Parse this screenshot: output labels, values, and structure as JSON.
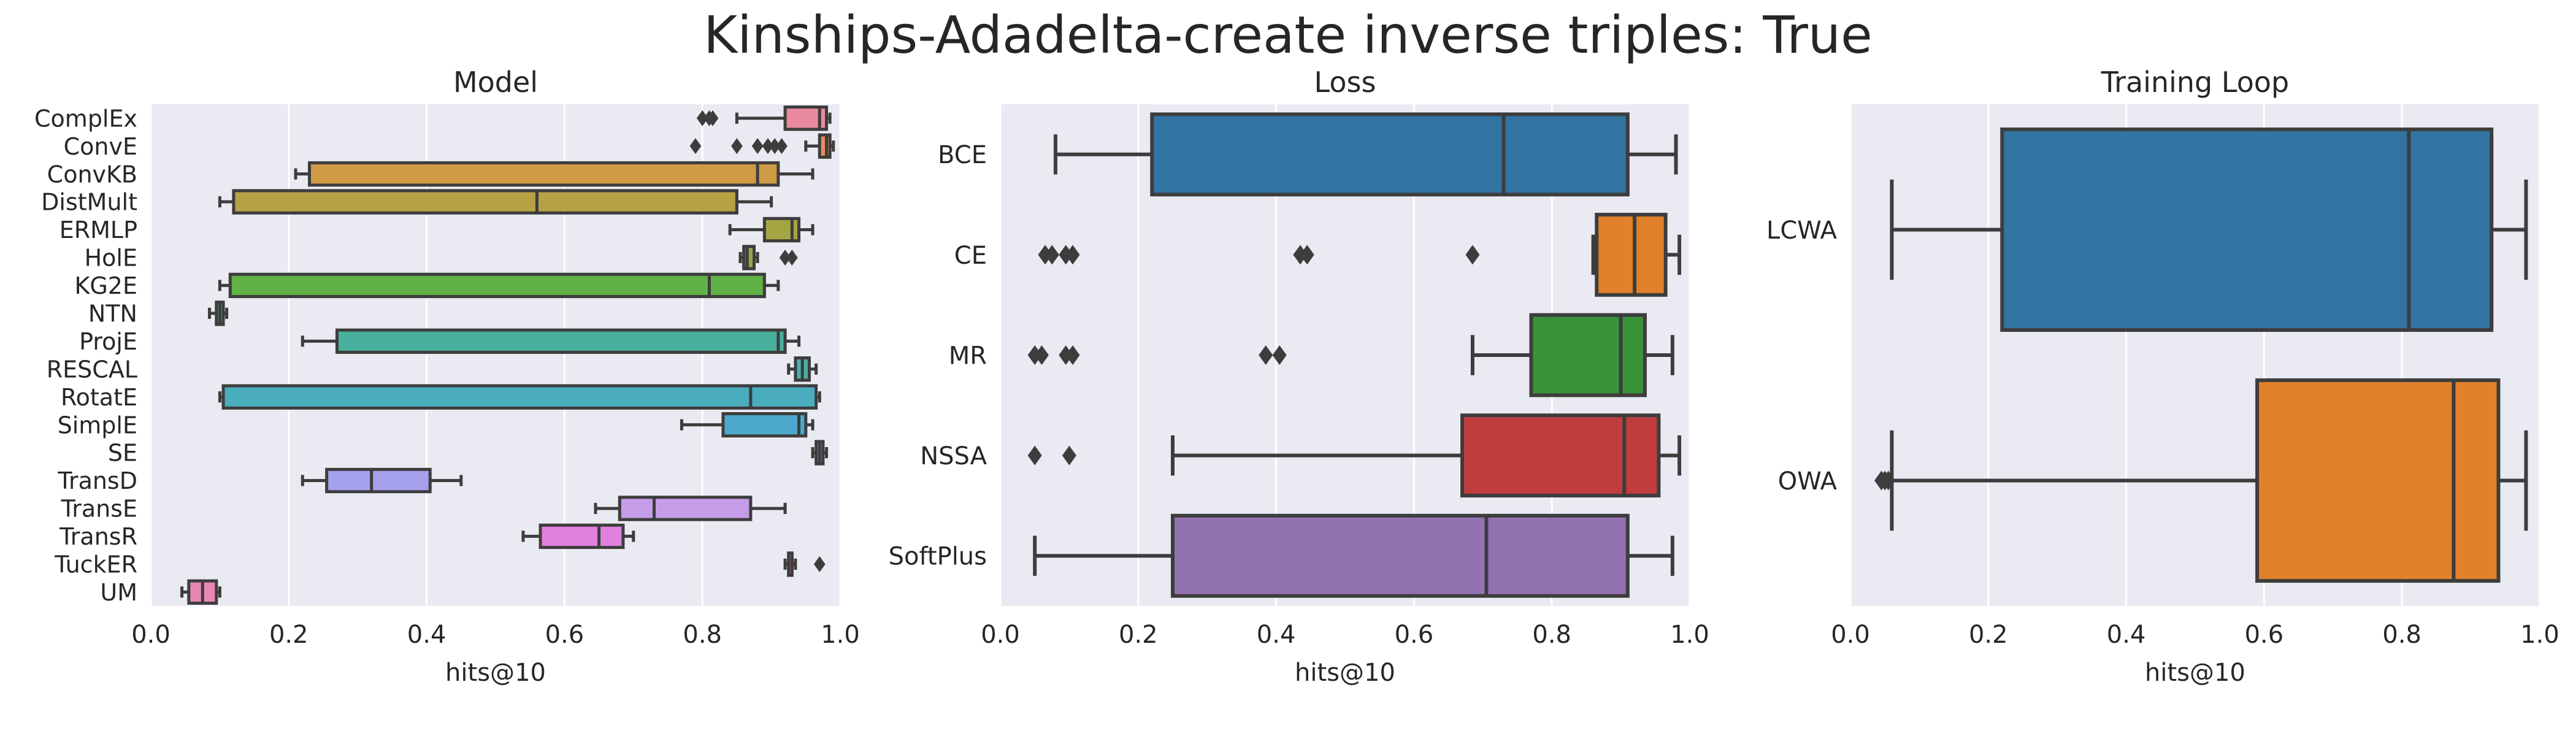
{
  "title": "Kinships-Adadelta-create inverse triples: True",
  "colors": {
    "background": "#eaeaf2",
    "grid": "#ffffff",
    "box_edge": "#3d3d3d"
  },
  "chart_data": [
    {
      "type": "box",
      "orientation": "horizontal",
      "title": "Model",
      "xlabel": "hits@10",
      "ylabel": "",
      "xlim": [
        0.0,
        1.0
      ],
      "xticks": [
        "0.0",
        "0.2",
        "0.4",
        "0.6",
        "0.8",
        "1.0"
      ],
      "grid": true,
      "categories": [
        "ComplEx",
        "ConvE",
        "ConvKB",
        "DistMult",
        "ERMLP",
        "HolE",
        "KG2E",
        "NTN",
        "ProjE",
        "RESCAL",
        "RotatE",
        "SimplE",
        "SE",
        "TransD",
        "TransE",
        "TransR",
        "TuckER",
        "UM"
      ],
      "colors": [
        "#e98aa0",
        "#e58c62",
        "#d09b45",
        "#b6a144",
        "#a6a544",
        "#97a944",
        "#60b146",
        "#4bb284",
        "#48b09c",
        "#49b0ac",
        "#4aadbd",
        "#4ca9cc",
        "#85a1dc",
        "#a6a1ec",
        "#c59ce8",
        "#e081df",
        "#ea84cd",
        "#e986b4"
      ],
      "boxes": [
        {
          "whislo": 0.85,
          "q1": 0.92,
          "med": 0.97,
          "q3": 0.98,
          "whishi": 0.985,
          "fliers": [
            0.8,
            0.81,
            0.815
          ]
        },
        {
          "whislo": 0.95,
          "q1": 0.97,
          "med": 0.98,
          "q3": 0.985,
          "whishi": 0.99,
          "fliers": [
            0.79,
            0.85,
            0.88,
            0.895,
            0.905,
            0.915
          ]
        },
        {
          "whislo": 0.21,
          "q1": 0.23,
          "med": 0.88,
          "q3": 0.91,
          "whishi": 0.96,
          "fliers": []
        },
        {
          "whislo": 0.1,
          "q1": 0.12,
          "med": 0.56,
          "q3": 0.85,
          "whishi": 0.9,
          "fliers": []
        },
        {
          "whislo": 0.84,
          "q1": 0.89,
          "med": 0.93,
          "q3": 0.94,
          "whishi": 0.96,
          "fliers": []
        },
        {
          "whislo": 0.855,
          "q1": 0.86,
          "med": 0.865,
          "q3": 0.875,
          "whishi": 0.88,
          "fliers": [
            0.92,
            0.93
          ]
        },
        {
          "whislo": 0.1,
          "q1": 0.115,
          "med": 0.81,
          "q3": 0.89,
          "whishi": 0.91,
          "fliers": []
        },
        {
          "whislo": 0.085,
          "q1": 0.095,
          "med": 0.1,
          "q3": 0.105,
          "whishi": 0.11,
          "fliers": []
        },
        {
          "whislo": 0.22,
          "q1": 0.27,
          "med": 0.91,
          "q3": 0.92,
          "whishi": 0.94,
          "fliers": []
        },
        {
          "whislo": 0.925,
          "q1": 0.935,
          "med": 0.945,
          "q3": 0.955,
          "whishi": 0.965,
          "fliers": []
        },
        {
          "whislo": 0.1,
          "q1": 0.105,
          "med": 0.87,
          "q3": 0.965,
          "whishi": 0.97,
          "fliers": []
        },
        {
          "whislo": 0.77,
          "q1": 0.83,
          "med": 0.94,
          "q3": 0.95,
          "whishi": 0.96,
          "fliers": []
        },
        {
          "whislo": 0.96,
          "q1": 0.965,
          "med": 0.97,
          "q3": 0.975,
          "whishi": 0.98,
          "fliers": []
        },
        {
          "whislo": 0.22,
          "q1": 0.255,
          "med": 0.32,
          "q3": 0.405,
          "whishi": 0.45,
          "fliers": []
        },
        {
          "whislo": 0.645,
          "q1": 0.68,
          "med": 0.73,
          "q3": 0.87,
          "whishi": 0.92,
          "fliers": []
        },
        {
          "whislo": 0.54,
          "q1": 0.565,
          "med": 0.65,
          "q3": 0.685,
          "whishi": 0.7,
          "fliers": []
        },
        {
          "whislo": 0.92,
          "q1": 0.925,
          "med": 0.93,
          "q3": 0.93,
          "whishi": 0.935,
          "fliers": [
            0.97
          ]
        },
        {
          "whislo": 0.045,
          "q1": 0.055,
          "med": 0.075,
          "q3": 0.095,
          "whishi": 0.1,
          "fliers": []
        }
      ]
    },
    {
      "type": "box",
      "orientation": "horizontal",
      "title": "Loss",
      "xlabel": "hits@10",
      "ylabel": "",
      "xlim": [
        0.0,
        1.0
      ],
      "xticks": [
        "0.0",
        "0.2",
        "0.4",
        "0.6",
        "0.8",
        "1.0"
      ],
      "grid": true,
      "categories": [
        "BCE",
        "CE",
        "MR",
        "NSSA",
        "SoftPlus"
      ],
      "colors": [
        "#3274a1",
        "#e1812c",
        "#3a923a",
        "#c03d3e",
        "#9372b2"
      ],
      "boxes": [
        {
          "whislo": 0.08,
          "q1": 0.22,
          "med": 0.73,
          "q3": 0.91,
          "whishi": 0.98,
          "fliers": []
        },
        {
          "whislo": 0.86,
          "q1": 0.865,
          "med": 0.92,
          "q3": 0.965,
          "whishi": 0.985,
          "fliers": [
            0.065,
            0.075,
            0.095,
            0.105,
            0.435,
            0.445,
            0.685
          ]
        },
        {
          "whislo": 0.685,
          "q1": 0.77,
          "med": 0.9,
          "q3": 0.935,
          "whishi": 0.975,
          "fliers": [
            0.05,
            0.06,
            0.095,
            0.105,
            0.385,
            0.405
          ]
        },
        {
          "whislo": 0.25,
          "q1": 0.67,
          "med": 0.905,
          "q3": 0.955,
          "whishi": 0.985,
          "fliers": [
            0.05,
            0.1
          ]
        },
        {
          "whislo": 0.05,
          "q1": 0.25,
          "med": 0.705,
          "q3": 0.91,
          "whishi": 0.975,
          "fliers": []
        }
      ]
    },
    {
      "type": "box",
      "orientation": "horizontal",
      "title": "Training Loop",
      "xlabel": "hits@10",
      "ylabel": "",
      "xlim": [
        0.0,
        1.0
      ],
      "xticks": [
        "0.0",
        "0.2",
        "0.4",
        "0.6",
        "0.8",
        "1.0"
      ],
      "grid": true,
      "categories": [
        "LCWA",
        "OWA"
      ],
      "colors": [
        "#3274a1",
        "#e1812c"
      ],
      "boxes": [
        {
          "whislo": 0.06,
          "q1": 0.22,
          "med": 0.81,
          "q3": 0.93,
          "whishi": 0.98,
          "fliers": []
        },
        {
          "whislo": 0.06,
          "q1": 0.59,
          "med": 0.875,
          "q3": 0.94,
          "whishi": 0.98,
          "fliers": [
            0.045,
            0.05,
            0.055
          ]
        }
      ]
    }
  ]
}
